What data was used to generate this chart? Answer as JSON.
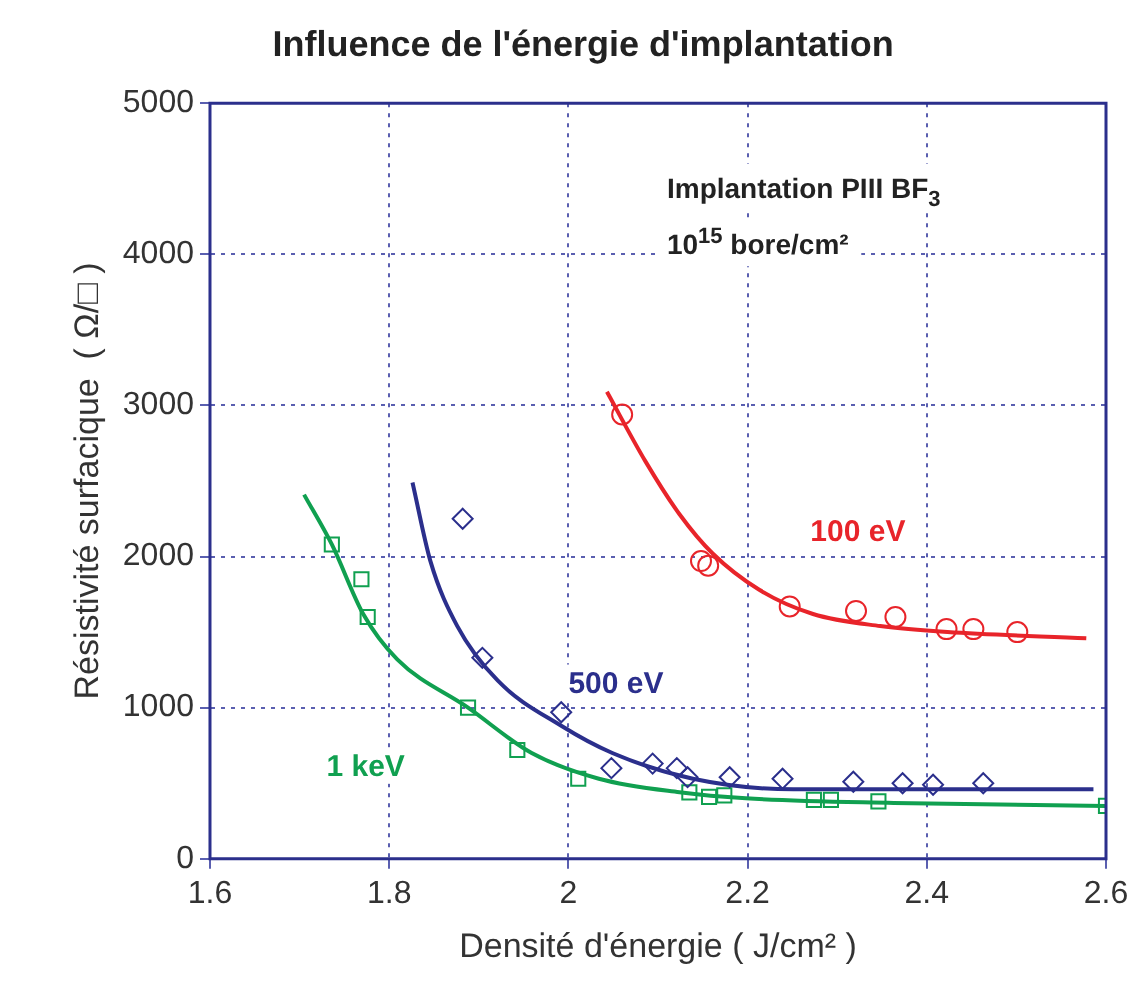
{
  "chart_data": {
    "type": "scatter",
    "title": "Influence de l'énergie d'implantation",
    "xlabel": "Densité d'énergie ( J/cm² )",
    "ylabel": "Résistivité surfacique  ( Ω/□ )",
    "annotations": [
      "Implantation PIII BF$_{3}$",
      "10$^{15}$ bore/cm²"
    ],
    "xlim": [
      1.6,
      2.6
    ],
    "xticks": [
      1.6,
      1.8,
      2,
      2.2,
      2.4,
      2.6
    ],
    "ylim": [
      0,
      5000
    ],
    "yticks": [
      0,
      1000,
      2000,
      3000,
      4000,
      5000
    ],
    "grid": true,
    "legend": false,
    "series": [
      {
        "name": "100 eV",
        "marker": "circle",
        "color": "#e8242a",
        "x": [
          2.06,
          2.148,
          2.156,
          2.247,
          2.321,
          2.365,
          2.422,
          2.452,
          2.501
        ],
        "values": [
          2940,
          1970,
          1940,
          1670,
          1640,
          1600,
          1520,
          1520,
          1500
        ]
      },
      {
        "name": "500 eV",
        "marker": "diamond",
        "color": "#2b2f8c",
        "x": [
          1.882,
          1.904,
          1.992,
          2.048,
          2.094,
          2.121,
          2.133,
          2.18,
          2.239,
          2.318,
          2.373,
          2.407,
          2.463
        ],
        "values": [
          2250,
          1330,
          970,
          600,
          630,
          600,
          540,
          540,
          530,
          510,
          500,
          490,
          500
        ]
      },
      {
        "name": "1 keV",
        "marker": "square",
        "color": "#10a050",
        "x": [
          1.736,
          1.769,
          1.776,
          1.888,
          1.943,
          2.011,
          2.135,
          2.157,
          2.174,
          2.274,
          2.293,
          2.346,
          2.6
        ],
        "values": [
          2080,
          1850,
          1600,
          1000,
          720,
          530,
          440,
          410,
          420,
          390,
          390,
          380,
          350
        ]
      },
      {
        "type": "line",
        "marker": "none",
        "color": "#e8242a",
        "x": [
          2.043,
          2.086,
          2.124,
          2.161,
          2.213,
          2.273,
          2.348,
          2.423,
          2.578
        ],
        "values": [
          3090,
          2630,
          2280,
          2020,
          1780,
          1620,
          1540,
          1500,
          1460
        ]
      },
      {
        "type": "line",
        "marker": "none",
        "color": "#2b2f8c",
        "x": [
          1.826,
          1.846,
          1.876,
          1.921,
          1.992,
          2.049,
          2.139,
          2.251,
          2.363,
          2.586
        ],
        "values": [
          2490,
          1970,
          1540,
          1180,
          880,
          700,
          530,
          460,
          460,
          460
        ]
      },
      {
        "type": "line",
        "marker": "none",
        "color": "#10a050",
        "x": [
          1.705,
          1.736,
          1.771,
          1.809,
          1.888,
          1.959,
          2.034,
          2.124,
          2.198,
          2.363,
          2.6
        ],
        "values": [
          2410,
          2080,
          1620,
          1320,
          1000,
          700,
          530,
          440,
          400,
          370,
          350
        ]
      }
    ]
  }
}
